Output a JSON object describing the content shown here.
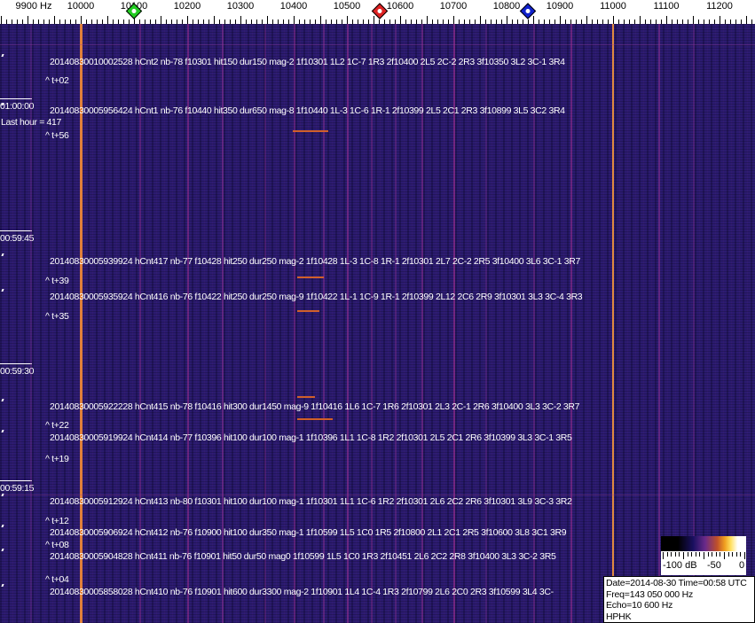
{
  "axis": {
    "unit_label": "9900 Hz",
    "ticks": [
      "10000",
      "10100",
      "10200",
      "10300",
      "10400",
      "10500",
      "10600",
      "10700",
      "10800",
      "10900",
      "11000",
      "11100",
      "11200"
    ],
    "markers": [
      {
        "name": "green-marker",
        "freq_hz": 10100,
        "color": "#22cc22"
      },
      {
        "name": "red-marker",
        "freq_hz": 10562,
        "color": "#dd2222"
      },
      {
        "name": "blue-marker",
        "freq_hz": 10840,
        "color": "#1122cc"
      }
    ]
  },
  "colors": {
    "background": "#2b1b70",
    "carrier_line": "#e0803a",
    "text": "#ffffff"
  },
  "time_labels": [
    "01:00:00",
    "00:59:45",
    "00:59:30",
    "00:59:15"
  ],
  "last_hour": "Last hour = 417",
  "detections": [
    "20140830010002528 hCnt2 nb-78 f10301 hit150 dur150 mag-2 1f10301 1L2 1C-7 1R3 2f10400 2L5 2C-2 2R3 3f10350 3L2 3C-1 3R4",
    "20140830005956424 hCnt1 nb-76 f10440 hit350 dur650 mag-8 1f10440 1L-3 1C-6 1R-1 2f10399 2L5 2C1 2R3 3f10899 3L5 3C2 3R4",
    "20140830005939924 hCnt417 nb-77 f10428 hit250 dur250 mag-2 1f10428 1L-3 1C-8 1R-1 2f10301 2L7 2C-2 2R5 3f10400 3L6 3C-1 3R7",
    "20140830005935924 hCnt416 nb-76 f10422 hit250 dur250 mag-9 1f10422 1L-1 1C-9 1R-1 2f10399 2L12 2C6 2R9 3f10301 3L3 3C-4 3R3",
    "20140830005922228 hCnt415 nb-78 f10416 hit300 dur1450 mag-9 1f10416 1L6 1C-7 1R6 2f10301 2L3 2C-1 2R6 3f10400 3L3 3C-2 3R7",
    "20140830005919924 hCnt414 nb-77 f10396 hit100 dur100 mag-1 1f10396 1L1 1C-8 1R2 2f10301 2L5 2C1 2R6 3f10399 3L3 3C-1 3R5",
    "20140830005912924 hCnt413 nb-80 f10301 hit100 dur100 mag-1 1f10301 1L1 1C-6 1R2 2f10301 2L6 2C2 2R6 3f10301 3L9 3C-3 3R2",
    "20140830005906924 hCnt412 nb-76 f10900 hit100 dur350 mag-1 1f10599 1L5 1C0 1R5 2f10800 2L1 2C1 2R5 3f10600 3L8 3C1 3R9",
    "20140830005904828 hCnt411 nb-76 f10901 hit50 dur50 mag0 1f10599 1L5 1C0 1R3 2f10451 2L6 2C2 2R8 3f10400 3L3 3C-2 3R5",
    "20140830005858028 hCnt410 nb-76 f10901 hit600 dur3300 mag-2 1f10901 1L4 1C-4 1R3 2f10799 2L6 2C0 2R3 3f10599 3L4 3C-"
  ],
  "offsets": [
    "^ t+02",
    "^ t+56",
    "^ t+39",
    "^ t+35",
    "^ t+22",
    "^ t+19",
    "^ t+12",
    "^ t+08",
    "^ t+04"
  ],
  "colorbar": {
    "labels": [
      "-100 dB",
      "-50",
      "0"
    ],
    "range_db": [
      -100,
      0
    ]
  },
  "info": {
    "date_time": "Date=2014-08-30 Time=00:58 UTC",
    "freq": "Freq=143 050 000 Hz",
    "echo": "Echo=10 600 Hz",
    "station": "HPHK"
  }
}
